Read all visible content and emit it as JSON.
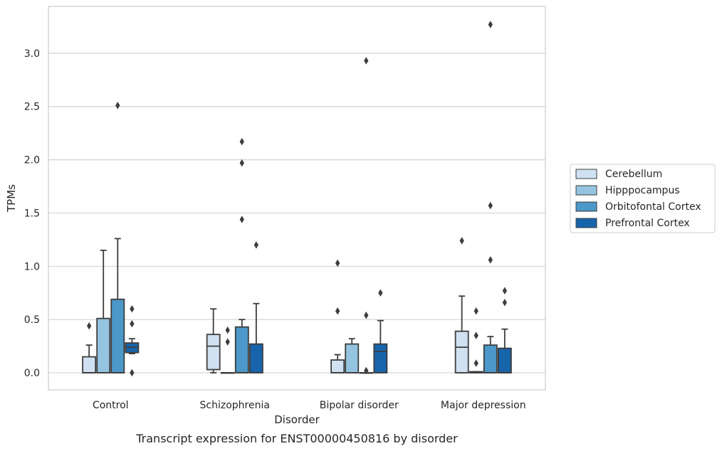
{
  "chart_data": {
    "type": "box",
    "caption": "Transcript expression for ENST00000450816 by disorder",
    "xlabel": "Disorder",
    "ylabel": "TPMs",
    "ylim": [
      -0.16,
      3.44
    ],
    "yticks": [
      0.0,
      0.5,
      1.0,
      1.5,
      2.0,
      2.5,
      3.0
    ],
    "ytick_labels": [
      "0.0",
      "0.5",
      "1.0",
      "1.5",
      "2.0",
      "2.5",
      "3.0"
    ],
    "grid": "horizontal",
    "legend_position": "right",
    "categories": [
      "Control",
      "Schizophrenia",
      "Bipolar disorder",
      "Major depression"
    ],
    "series": [
      {
        "name": "Cerebellum",
        "color": "#d0e1f2",
        "boxes": [
          {
            "whisker_low": 0.0,
            "q1": 0.0,
            "median": 0.0,
            "q3": 0.15,
            "whisker_high": 0.26,
            "outliers": [
              0.44
            ]
          },
          {
            "whisker_low": 0.0,
            "q1": 0.03,
            "median": 0.25,
            "q3": 0.36,
            "whisker_high": 0.6,
            "outliers": []
          },
          {
            "whisker_low": 0.0,
            "q1": 0.0,
            "median": 0.0,
            "q3": 0.12,
            "whisker_high": 0.17,
            "outliers": [
              0.58,
              1.03
            ]
          },
          {
            "whisker_low": 0.0,
            "q1": 0.0,
            "median": 0.24,
            "q3": 0.39,
            "whisker_high": 0.72,
            "outliers": [
              1.24
            ]
          }
        ]
      },
      {
        "name": "Hipppocampus",
        "color": "#94c4df",
        "boxes": [
          {
            "whisker_low": 0.0,
            "q1": 0.0,
            "median": 0.0,
            "q3": 0.51,
            "whisker_high": 1.15,
            "outliers": []
          },
          {
            "whisker_low": 0.0,
            "q1": 0.0,
            "median": 0.0,
            "q3": 0.0,
            "whisker_high": 0.0,
            "outliers": [
              0.29,
              0.4
            ]
          },
          {
            "whisker_low": 0.0,
            "q1": 0.0,
            "median": 0.0,
            "q3": 0.27,
            "whisker_high": 0.32,
            "outliers": []
          },
          {
            "whisker_low": 0.0,
            "q1": 0.0,
            "median": 0.0,
            "q3": 0.01,
            "whisker_high": 0.01,
            "outliers": [
              0.09,
              0.35,
              0.58
            ]
          }
        ]
      },
      {
        "name": "Orbitofontal Cortex",
        "color": "#4b98c9",
        "boxes": [
          {
            "whisker_low": 0.0,
            "q1": 0.0,
            "median": 0.0,
            "q3": 0.69,
            "whisker_high": 1.26,
            "outliers": [
              2.51
            ]
          },
          {
            "whisker_low": 0.0,
            "q1": 0.0,
            "median": 0.0,
            "q3": 0.43,
            "whisker_high": 0.5,
            "outliers": [
              1.44,
              1.97,
              2.17
            ]
          },
          {
            "whisker_low": 0.0,
            "q1": 0.0,
            "median": 0.0,
            "q3": 0.0,
            "whisker_high": 0.0,
            "outliers": [
              0.02,
              0.54,
              2.93
            ]
          },
          {
            "whisker_low": 0.0,
            "q1": 0.0,
            "median": 0.0,
            "q3": 0.26,
            "whisker_high": 0.34,
            "outliers": [
              1.06,
              1.57,
              3.27
            ]
          }
        ]
      },
      {
        "name": "Prefrontal Cortex",
        "color": "#1764ab",
        "boxes": [
          {
            "whisker_low": 0.18,
            "q1": 0.19,
            "median": 0.24,
            "q3": 0.28,
            "whisker_high": 0.32,
            "outliers": [
              0.0,
              0.46,
              0.6
            ]
          },
          {
            "whisker_low": 0.0,
            "q1": 0.0,
            "median": 0.0,
            "q3": 0.27,
            "whisker_high": 0.65,
            "outliers": [
              1.2
            ]
          },
          {
            "whisker_low": 0.0,
            "q1": 0.0,
            "median": 0.2,
            "q3": 0.27,
            "whisker_high": 0.49,
            "outliers": [
              0.75
            ]
          },
          {
            "whisker_low": 0.0,
            "q1": 0.0,
            "median": 0.0,
            "q3": 0.23,
            "whisker_high": 0.41,
            "outliers": [
              0.66,
              0.77
            ]
          }
        ]
      }
    ]
  }
}
